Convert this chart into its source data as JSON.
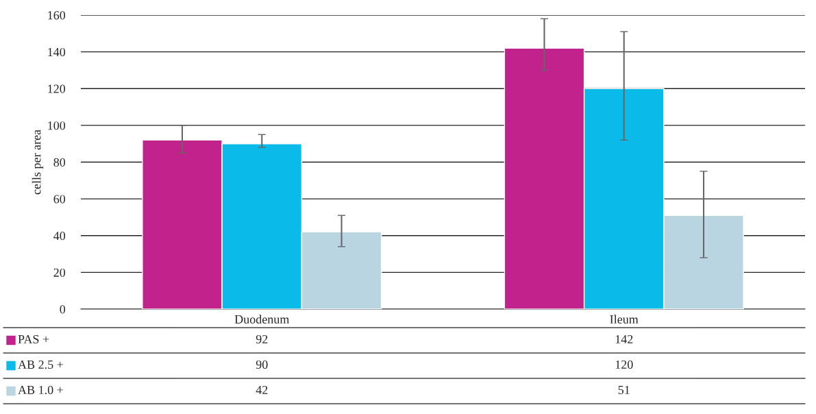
{
  "chart_data": {
    "type": "bar",
    "ylabel": "cells per area",
    "categories": [
      "Duodenum",
      "Ileum"
    ],
    "series": [
      {
        "name": "PAS +",
        "color": "#c2228c",
        "values": [
          92,
          142
        ],
        "errors": [
          [
            85,
            100
          ],
          [
            130,
            158
          ]
        ]
      },
      {
        "name": "AB 2.5 +",
        "color": "#0abbea",
        "values": [
          90,
          120
        ],
        "errors": [
          [
            88,
            95
          ],
          [
            92,
            151
          ]
        ]
      },
      {
        "name": "AB 1.0 +",
        "color": "#bad5e2",
        "values": [
          42,
          51
        ],
        "errors": [
          [
            34,
            51
          ],
          [
            28,
            75
          ]
        ]
      }
    ],
    "ylim": [
      0,
      160
    ],
    "yticks": [
      0,
      20,
      40,
      60,
      80,
      100,
      120,
      140,
      160
    ],
    "grid": "y",
    "data_labels": true,
    "legend": "bottom"
  }
}
